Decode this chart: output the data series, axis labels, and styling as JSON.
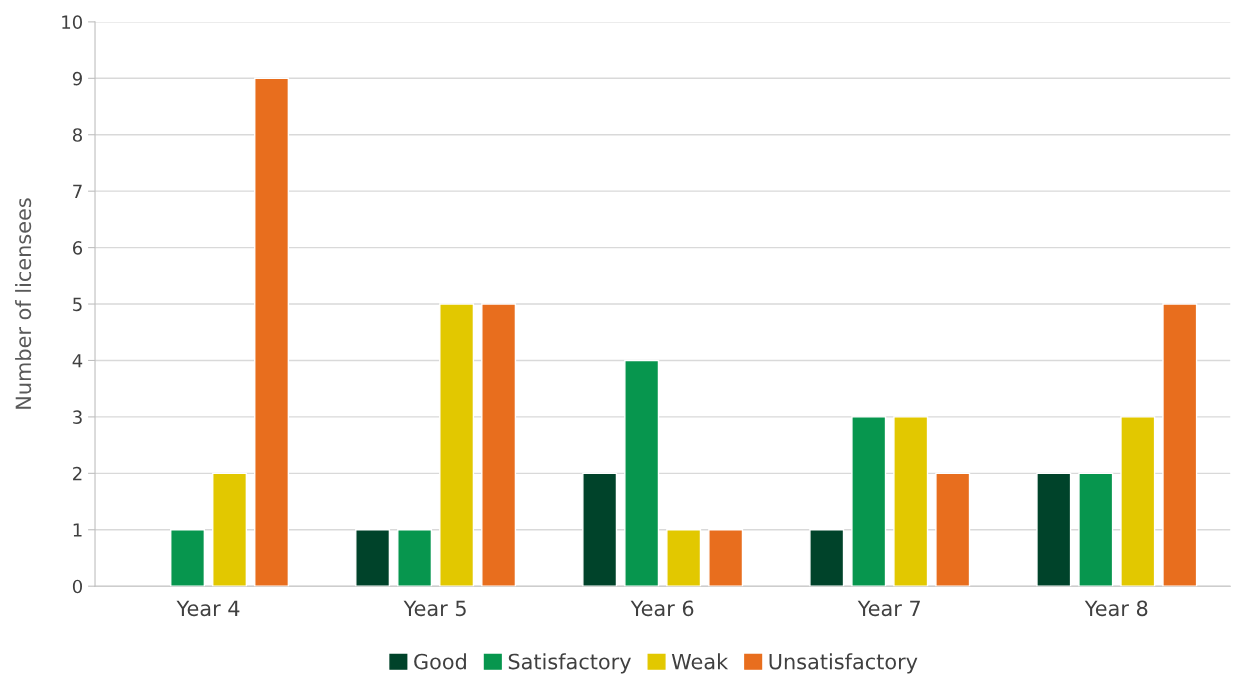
{
  "chart_data": {
    "type": "bar",
    "ylabel": "Number of licensees",
    "categories": [
      "Year 4",
      "Year 5",
      "Year 6",
      "Year 7",
      "Year 8"
    ],
    "series": [
      {
        "name": "Good",
        "color": "#00432a",
        "values": [
          0,
          1,
          2,
          1,
          2
        ]
      },
      {
        "name": "Satisfactory",
        "color": "#07964e",
        "values": [
          1,
          1,
          4,
          3,
          2
        ]
      },
      {
        "name": "Weak",
        "color": "#e2c800",
        "values": [
          2,
          5,
          1,
          3,
          3
        ]
      },
      {
        "name": "Unsatisfactory",
        "color": "#e86e1e",
        "values": [
          9,
          5,
          1,
          2,
          5
        ]
      }
    ],
    "ylim": [
      0,
      10
    ],
    "yticks": [
      0,
      1,
      2,
      3,
      4,
      5,
      6,
      7,
      8,
      9,
      10
    ],
    "grid": "y",
    "legend": "bottom"
  }
}
